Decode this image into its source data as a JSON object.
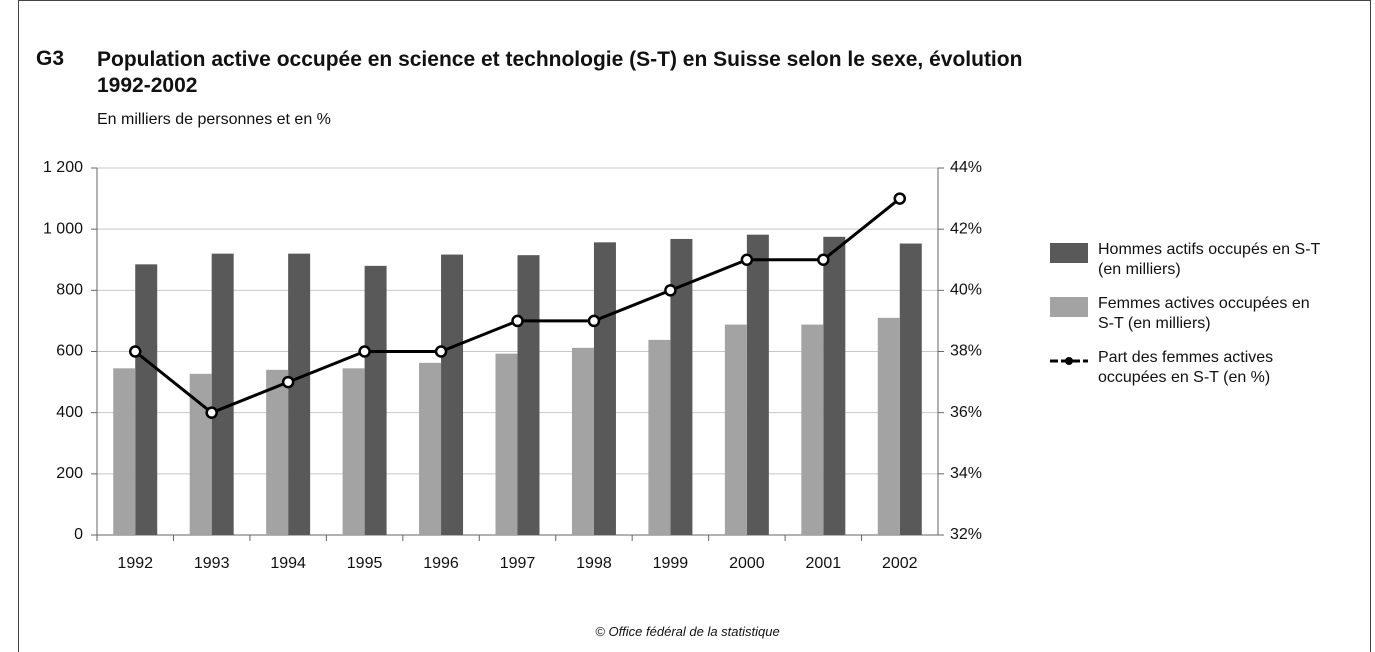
{
  "chart_data": {
    "type": "bar",
    "label": "G3",
    "title": "Population active occupée en science et technologie (S-T) en Suisse selon le sexe, évolution 1992-2002",
    "subtitle": "En milliers de personnes et en %",
    "footer": "© Office fédéral de la statistique",
    "categories": [
      "1992",
      "1993",
      "1994",
      "1995",
      "1996",
      "1997",
      "1998",
      "1999",
      "2000",
      "2001",
      "2002"
    ],
    "series": [
      {
        "name": "Hommes actifs occupés en S-T (en milliers)",
        "type": "bar",
        "color": "#595959",
        "values": [
          885,
          920,
          920,
          880,
          917,
          915,
          957,
          968,
          982,
          975,
          953
        ]
      },
      {
        "name": "Femmes actives occupées en S-T (en milliers)",
        "type": "bar",
        "color": "#a3a3a3",
        "values": [
          545,
          527,
          540,
          545,
          563,
          593,
          612,
          638,
          688,
          688,
          710
        ]
      },
      {
        "name": "Part des femmes actives occupées en S-T (en %)",
        "type": "line",
        "axis": "y2",
        "color": "#000000",
        "values": [
          38,
          36,
          37,
          38,
          38,
          39,
          39,
          40,
          41,
          41,
          43
        ]
      }
    ],
    "ylim": [
      0,
      1200
    ],
    "yticks": [
      0,
      200,
      400,
      600,
      800,
      {
        "value": 1000,
        "label": "1 000"
      },
      {
        "value": 1200,
        "label": "1 200"
      }
    ],
    "y2lim": [
      32,
      44
    ],
    "y2ticks": [
      {
        "value": 32,
        "label": "32%"
      },
      {
        "value": 34,
        "label": "34%"
      },
      {
        "value": 36,
        "label": "36%"
      },
      {
        "value": 38,
        "label": "38%"
      },
      {
        "value": 40,
        "label": "40%"
      },
      {
        "value": 42,
        "label": "42%"
      },
      {
        "value": 44,
        "label": "44%"
      }
    ],
    "grid": true,
    "legend": "right"
  }
}
